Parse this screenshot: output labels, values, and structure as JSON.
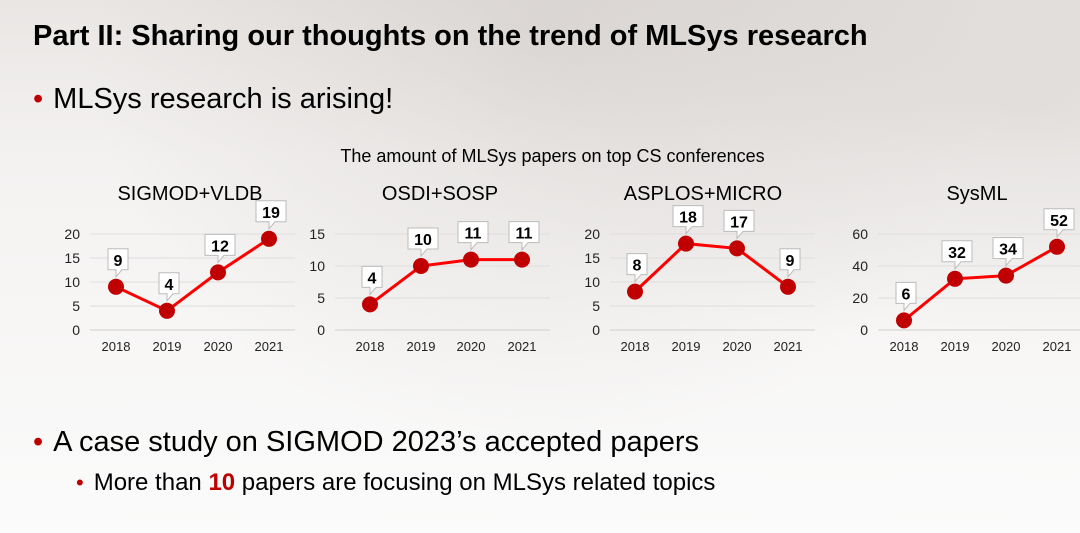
{
  "slide": {
    "title": "Part II: Sharing our thoughts on the trend of MLSys research",
    "bullet_1": "MLSys research is arising!",
    "bullet_2": "A case study on SIGMOD 2023’s accepted papers",
    "sub_bullet_pre": "More than ",
    "sub_bullet_highlight": "10",
    "sub_bullet_post": " papers are focusing on MLSys related topics",
    "bullet_glyph": "•",
    "chart_heading": "The amount of MLSys papers on top CS conferences",
    "colors": {
      "line": "#ff0000",
      "marker": "#c00000",
      "accent": "#c00000"
    }
  },
  "chart_data": [
    {
      "type": "line",
      "title": "SIGMOD+VLDB",
      "categories": [
        "2018",
        "2019",
        "2020",
        "2021"
      ],
      "values": [
        9,
        4,
        12,
        19
      ],
      "ylim": [
        0,
        20
      ],
      "yticks": [
        0,
        5,
        10,
        15,
        20
      ],
      "grid": true
    },
    {
      "type": "line",
      "title": "OSDI+SOSP",
      "categories": [
        "2018",
        "2019",
        "2020",
        "2021"
      ],
      "values": [
        4,
        10,
        11,
        11
      ],
      "ylim": [
        0,
        15
      ],
      "yticks": [
        0,
        5,
        10,
        15
      ],
      "grid": true
    },
    {
      "type": "line",
      "title": "ASPLOS+MICRO",
      "categories": [
        "2018",
        "2019",
        "2020",
        "2021"
      ],
      "values": [
        8,
        18,
        17,
        9
      ],
      "ylim": [
        0,
        20
      ],
      "yticks": [
        0,
        5,
        10,
        15,
        20
      ],
      "grid": true
    },
    {
      "type": "line",
      "title": "SysML",
      "categories": [
        "2018",
        "2019",
        "2020",
        "2021"
      ],
      "values": [
        6,
        32,
        34,
        52
      ],
      "ylim": [
        0,
        60
      ],
      "yticks": [
        0,
        20,
        40,
        60
      ],
      "grid": true
    }
  ]
}
